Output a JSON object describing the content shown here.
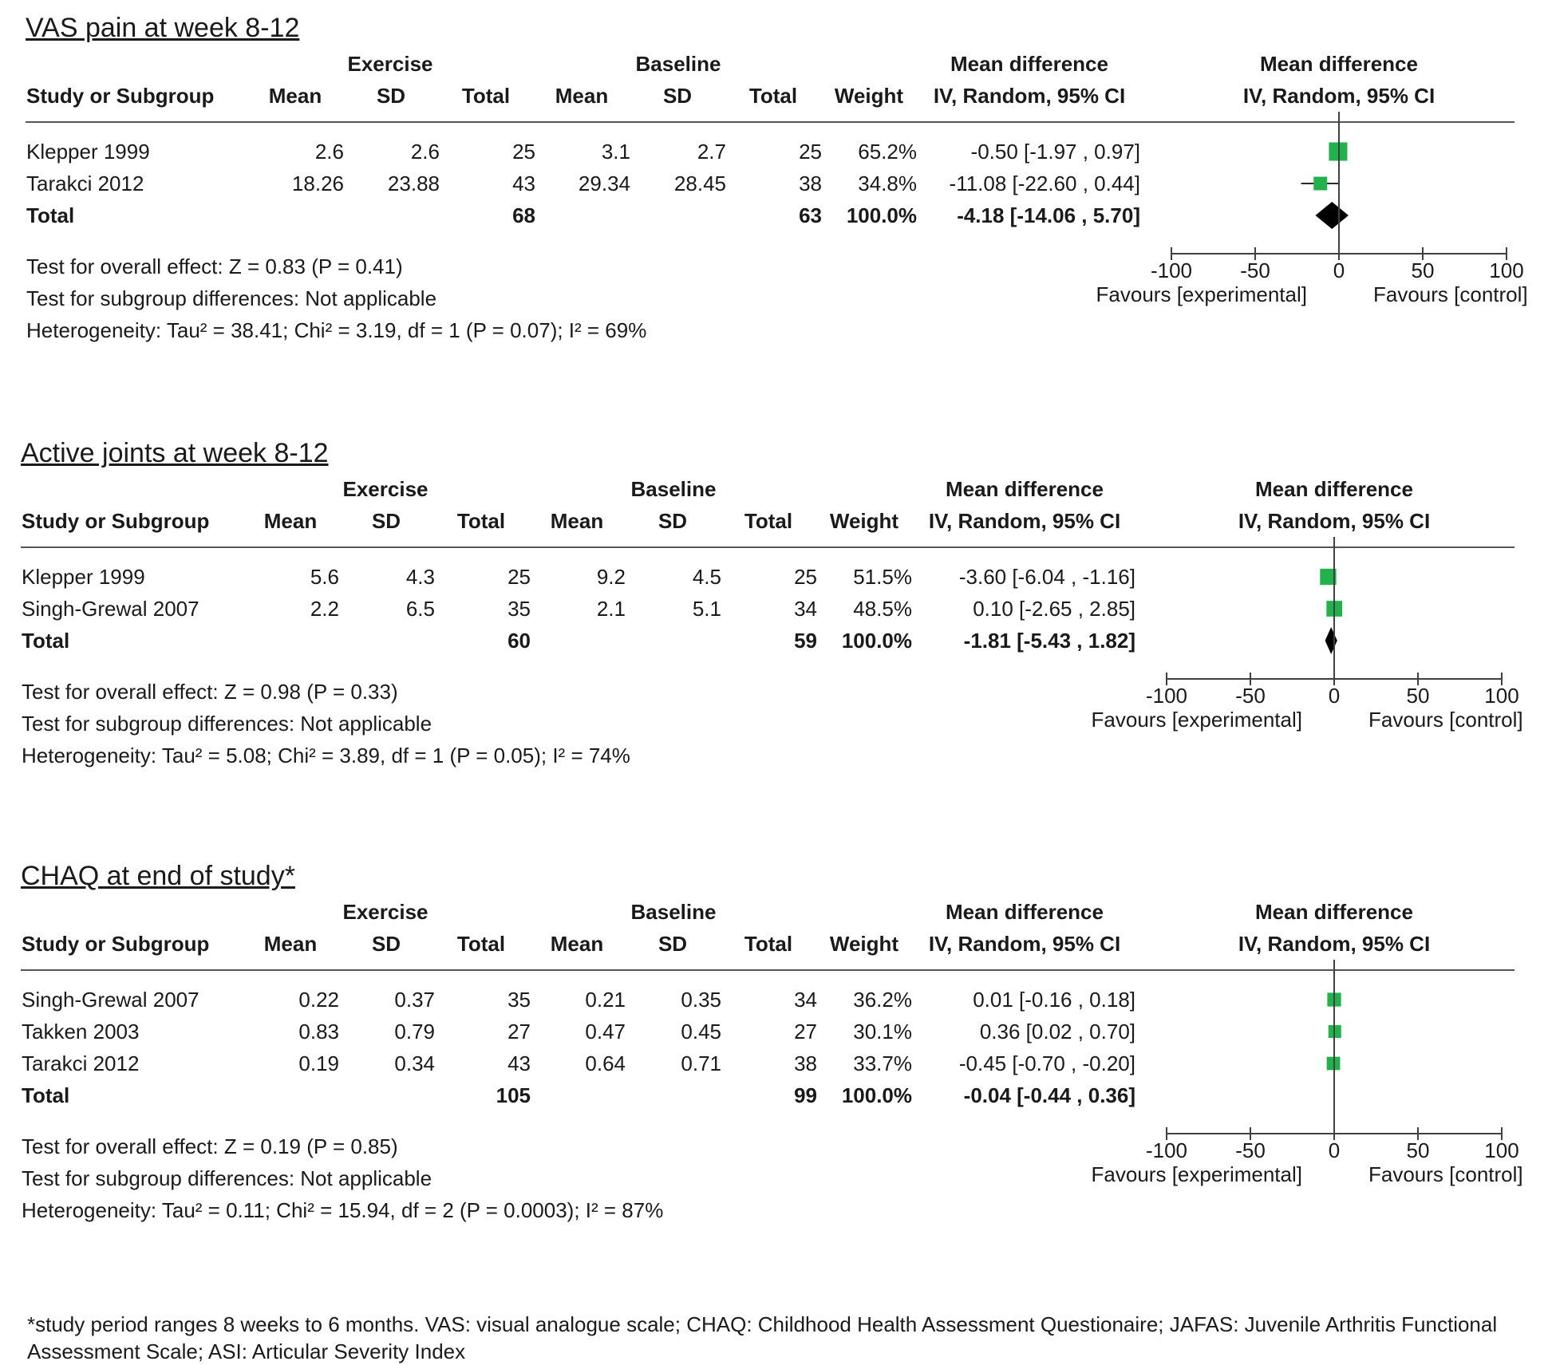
{
  "colors": {
    "study_marker": "#22b14c",
    "total_marker": "#000000",
    "axis": "#404040"
  },
  "chart_data": [
    {
      "type": "forest",
      "title": "VAS pain at week 8-12",
      "header": {
        "group1": "Exercise",
        "group2": "Baseline",
        "effect_left": "Mean difference",
        "effect_right": "Mean difference",
        "study_col": "Study or Subgroup",
        "mean": "Mean",
        "sd": "SD",
        "total": "Total",
        "weight": "Weight",
        "method_left": "IV, Random, 95% CI",
        "method_right": "IV, Random, 95% CI"
      },
      "studies": [
        {
          "name": "Klepper 1999",
          "m1": "2.6",
          "sd1": "2.6",
          "n1": "25",
          "m2": "3.1",
          "sd2": "2.7",
          "n2": "25",
          "weight": "65.2%",
          "ci_text": "-0.50 [-1.97 , 0.97]",
          "est": -0.5,
          "lo": -1.97,
          "hi": 0.97,
          "w": 65.2
        },
        {
          "name": "Tarakci 2012",
          "m1": "18.26",
          "sd1": "23.88",
          "n1": "43",
          "m2": "29.34",
          "sd2": "28.45",
          "n2": "38",
          "weight": "34.8%",
          "ci_text": "-11.08 [-22.60 , 0.44]",
          "est": -11.08,
          "lo": -22.6,
          "hi": 0.44,
          "w": 34.8
        }
      ],
      "total": {
        "label": "Total",
        "n1": "68",
        "n2": "63",
        "weight": "100.0%",
        "ci_text": "-4.18 [-14.06 , 5.70]",
        "est": -4.18,
        "lo": -14.06,
        "hi": 5.7
      },
      "tests": [
        "Test for overall effect: Z = 0.83 (P = 0.41)",
        "Test for subgroup differences: Not applicable",
        "Heterogeneity: Tau² = 38.41; Chi² = 3.19, df = 1 (P = 0.07); I² = 69%"
      ],
      "axis": {
        "min": -100,
        "max": 100,
        "ticks": [
          "-100",
          "-50",
          "0",
          "50",
          "100"
        ],
        "tick_values": [
          -100,
          -50,
          0,
          50,
          100
        ],
        "favours_left": "Favours [experimental]",
        "favours_right": "Favours [control]"
      }
    },
    {
      "type": "forest",
      "title": "Active joints at week 8-12",
      "header": {
        "group1": "Exercise",
        "group2": "Baseline",
        "effect_left": "Mean difference",
        "effect_right": "Mean difference",
        "study_col": "Study or Subgroup",
        "mean": "Mean",
        "sd": "SD",
        "total": "Total",
        "weight": "Weight",
        "method_left": "IV, Random, 95% CI",
        "method_right": "IV, Random, 95% CI"
      },
      "studies": [
        {
          "name": "Klepper 1999",
          "m1": "5.6",
          "sd1": "4.3",
          "n1": "25",
          "m2": "9.2",
          "sd2": "4.5",
          "n2": "25",
          "weight": "51.5%",
          "ci_text": "-3.60 [-6.04 , -1.16]",
          "est": -3.6,
          "lo": -6.04,
          "hi": -1.16,
          "w": 51.5
        },
        {
          "name": "Singh-Grewal 2007",
          "m1": "2.2",
          "sd1": "6.5",
          "n1": "35",
          "m2": "2.1",
          "sd2": "5.1",
          "n2": "34",
          "weight": "48.5%",
          "ci_text": "0.10 [-2.65 , 2.85]",
          "est": 0.1,
          "lo": -2.65,
          "hi": 2.85,
          "w": 48.5
        }
      ],
      "total": {
        "label": "Total",
        "n1": "60",
        "n2": "59",
        "weight": "100.0%",
        "ci_text": "-1.81 [-5.43 , 1.82]",
        "est": -1.81,
        "lo": -5.43,
        "hi": 1.82
      },
      "tests": [
        "Test for overall effect: Z = 0.98 (P = 0.33)",
        "Test for subgroup differences: Not applicable",
        "Heterogeneity: Tau² = 5.08; Chi² = 3.89, df = 1 (P = 0.05); I² = 74%"
      ],
      "axis": {
        "min": -100,
        "max": 100,
        "ticks": [
          "-100",
          "-50",
          "0",
          "50",
          "100"
        ],
        "tick_values": [
          -100,
          -50,
          0,
          50,
          100
        ],
        "favours_left": "Favours [experimental]",
        "favours_right": "Favours [control]"
      }
    },
    {
      "type": "forest",
      "title": "CHAQ at end of study*",
      "header": {
        "group1": "Exercise",
        "group2": "Baseline",
        "effect_left": "Mean difference",
        "effect_right": "Mean difference",
        "study_col": "Study or Subgroup",
        "mean": "Mean",
        "sd": "SD",
        "total": "Total",
        "weight": "Weight",
        "method_left": "IV, Random, 95% CI",
        "method_right": "IV, Random, 95% CI"
      },
      "studies": [
        {
          "name": "Singh-Grewal 2007",
          "m1": "0.22",
          "sd1": "0.37",
          "n1": "35",
          "m2": "0.21",
          "sd2": "0.35",
          "n2": "34",
          "weight": "36.2%",
          "ci_text": "0.01 [-0.16 , 0.18]",
          "est": 0.01,
          "lo": -0.16,
          "hi": 0.18,
          "w": 36.2
        },
        {
          "name": "Takken 2003",
          "m1": "0.83",
          "sd1": "0.79",
          "n1": "27",
          "m2": "0.47",
          "sd2": "0.45",
          "n2": "27",
          "weight": "30.1%",
          "ci_text": "0.36 [0.02 , 0.70]",
          "est": 0.36,
          "lo": 0.02,
          "hi": 0.7,
          "w": 30.1
        },
        {
          "name": "Tarakci 2012",
          "m1": "0.19",
          "sd1": "0.34",
          "n1": "43",
          "m2": "0.64",
          "sd2": "0.71",
          "n2": "38",
          "weight": "33.7%",
          "ci_text": "-0.45 [-0.70 , -0.20]",
          "est": -0.45,
          "lo": -0.7,
          "hi": -0.2,
          "w": 33.7
        }
      ],
      "total": {
        "label": "Total",
        "n1": "105",
        "n2": "99",
        "weight": "100.0%",
        "ci_text": "-0.04 [-0.44 , 0.36]",
        "est": -0.04,
        "lo": -0.44,
        "hi": 0.36
      },
      "tests": [
        "Test for overall effect: Z = 0.19 (P = 0.85)",
        "Test for subgroup differences: Not applicable",
        "Heterogeneity: Tau² = 0.11; Chi² = 15.94, df = 2 (P = 0.0003); I² = 87%"
      ],
      "axis": {
        "min": -100,
        "max": 100,
        "ticks": [
          "-100",
          "-50",
          "0",
          "50",
          "100"
        ],
        "tick_values": [
          -100,
          -50,
          0,
          50,
          100
        ],
        "favours_left": "Favours [experimental]",
        "favours_right": "Favours [control]"
      }
    }
  ],
  "footnote": "*study period ranges 8 weeks to 6 months. VAS: visual analogue scale; CHAQ: Childhood Health Assessment Questionaire; JAFAS: Juvenile Arthritis Functional Assessment Scale; ASI: Articular Severity Index"
}
